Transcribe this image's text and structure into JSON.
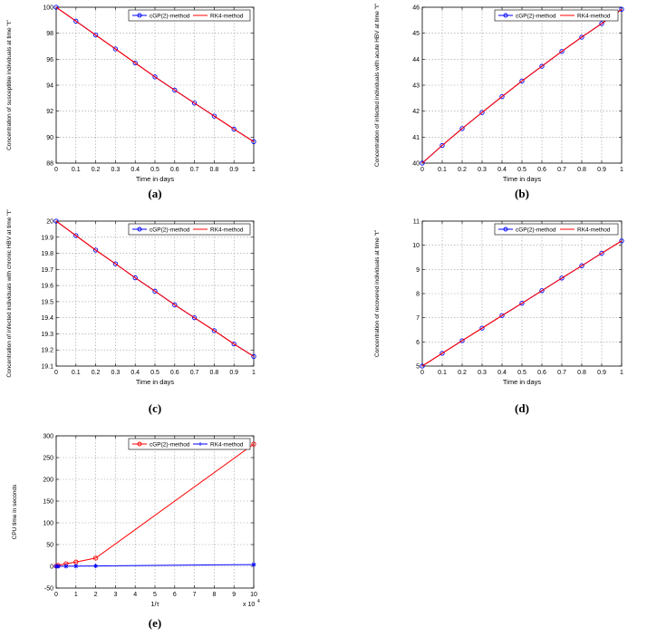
{
  "chart_data": [
    {
      "id": "a",
      "type": "line",
      "panel_label": "(a)",
      "xlabel": "Time in days",
      "ylabel": "Concentration of susceptible individuals at time \"t\"",
      "xlim": [
        0,
        1
      ],
      "ylim": [
        88,
        100
      ],
      "xticks": [
        0,
        0.1,
        0.2,
        0.3,
        0.4,
        0.5,
        0.6,
        0.7,
        0.8,
        0.9,
        1
      ],
      "xtick_labels": [
        "0",
        "0.1",
        "0.2",
        "0.3",
        "0.4",
        "0.5",
        "0.6",
        "0.7",
        "0.8",
        "0.9",
        "1"
      ],
      "yticks": [
        88,
        90,
        92,
        94,
        96,
        98,
        100
      ],
      "ytick_labels": [
        "88",
        "90",
        "92",
        "94",
        "96",
        "98",
        "100"
      ],
      "grid": true,
      "legend_position": "top-right",
      "x": [
        0,
        0.1,
        0.2,
        0.3,
        0.4,
        0.5,
        0.6,
        0.7,
        0.8,
        0.9,
        1
      ],
      "series": [
        {
          "name": "cGP(2)-method",
          "color": "#0000ff",
          "marker": "circle",
          "values": [
            100,
            98.93,
            97.86,
            96.79,
            95.71,
            94.64,
            93.62,
            92.62,
            91.62,
            90.62,
            89.65
          ]
        },
        {
          "name": "RK4-method",
          "color": "#ff0000",
          "marker": "none",
          "values": [
            100,
            98.93,
            97.86,
            96.79,
            95.71,
            94.64,
            93.62,
            92.62,
            91.62,
            90.62,
            89.65
          ]
        }
      ]
    },
    {
      "id": "b",
      "type": "line",
      "panel_label": "(b)",
      "xlabel": "Time in days",
      "ylabel": "Concentration of infected individuals with acute HBV at time \"t\"",
      "xlim": [
        0,
        1
      ],
      "ylim": [
        40,
        46
      ],
      "xticks": [
        0,
        0.1,
        0.2,
        0.3,
        0.4,
        0.5,
        0.6,
        0.7,
        0.8,
        0.9,
        1
      ],
      "xtick_labels": [
        "0",
        "0.1",
        "0.2",
        "0.3",
        "0.4",
        "0.5",
        "0.6",
        "0.7",
        "0.8",
        "0.9",
        "1"
      ],
      "yticks": [
        40,
        41,
        42,
        43,
        44,
        45,
        46
      ],
      "ytick_labels": [
        "40",
        "41",
        "42",
        "43",
        "44",
        "45",
        "46"
      ],
      "grid": true,
      "legend_position": "top-right",
      "x": [
        0,
        0.1,
        0.2,
        0.3,
        0.4,
        0.5,
        0.6,
        0.7,
        0.8,
        0.9,
        1
      ],
      "series": [
        {
          "name": "cGP(2)-method",
          "color": "#0000ff",
          "marker": "circle",
          "values": [
            40,
            40.68,
            41.33,
            41.95,
            42.56,
            43.16,
            43.73,
            44.3,
            44.85,
            45.37,
            45.92
          ]
        },
        {
          "name": "RK4-method",
          "color": "#ff0000",
          "marker": "none",
          "values": [
            40,
            40.68,
            41.33,
            41.95,
            42.56,
            43.16,
            43.73,
            44.3,
            44.85,
            45.37,
            45.92
          ]
        }
      ]
    },
    {
      "id": "c",
      "type": "line",
      "panel_label": "(c)",
      "xlabel": "Time in days",
      "ylabel": "Concentration of infected individuals with chronic HBV at time \"t\"",
      "xlim": [
        0,
        1
      ],
      "ylim": [
        19.1,
        20
      ],
      "xticks": [
        0,
        0.1,
        0.2,
        0.3,
        0.4,
        0.5,
        0.6,
        0.7,
        0.8,
        0.9,
        1
      ],
      "xtick_labels": [
        "0",
        "0.1",
        "0.2",
        "0.3",
        "0.4",
        "0.5",
        "0.6",
        "0.7",
        "0.8",
        "0.9",
        "1"
      ],
      "yticks": [
        19.1,
        19.2,
        19.3,
        19.4,
        19.5,
        19.6,
        19.7,
        19.8,
        19.9,
        20
      ],
      "ytick_labels": [
        "19.1",
        "19.2",
        "19.3",
        "19.4",
        "19.5",
        "19.6",
        "19.7",
        "19.8",
        "19.9",
        "20"
      ],
      "grid": true,
      "legend_position": "top-right",
      "x": [
        0,
        0.1,
        0.2,
        0.3,
        0.4,
        0.5,
        0.6,
        0.7,
        0.8,
        0.9,
        1
      ],
      "series": [
        {
          "name": "cGP(2)-method",
          "color": "#0000ff",
          "marker": "circle",
          "values": [
            20,
            19.91,
            19.82,
            19.735,
            19.648,
            19.565,
            19.48,
            19.4,
            19.32,
            19.237,
            19.16
          ]
        },
        {
          "name": "RK4-method",
          "color": "#ff0000",
          "marker": "none",
          "values": [
            20,
            19.91,
            19.82,
            19.735,
            19.648,
            19.565,
            19.48,
            19.4,
            19.32,
            19.237,
            19.16
          ]
        }
      ]
    },
    {
      "id": "d",
      "type": "line",
      "panel_label": "(d)",
      "xlabel": "Time in days",
      "ylabel": "Concentration of recovered individuals at time \"t\"",
      "xlim": [
        0,
        1
      ],
      "ylim": [
        5,
        11
      ],
      "xticks": [
        0,
        0.1,
        0.2,
        0.3,
        0.4,
        0.5,
        0.6,
        0.7,
        0.8,
        0.9,
        1
      ],
      "xtick_labels": [
        "0",
        "0.1",
        "0.2",
        "0.3",
        "0.4",
        "0.5",
        "0.6",
        "0.7",
        "0.8",
        "0.9",
        "1"
      ],
      "yticks": [
        5,
        6,
        7,
        8,
        9,
        10,
        11
      ],
      "ytick_labels": [
        "5",
        "6",
        "7",
        "8",
        "9",
        "10",
        "11"
      ],
      "grid": true,
      "legend_position": "top-right",
      "x": [
        0,
        0.1,
        0.2,
        0.3,
        0.4,
        0.5,
        0.6,
        0.7,
        0.8,
        0.9,
        1
      ],
      "series": [
        {
          "name": "cGP(2)-method",
          "color": "#0000ff",
          "marker": "circle",
          "values": [
            5,
            5.53,
            6.05,
            6.57,
            7.09,
            7.6,
            8.12,
            8.64,
            9.15,
            9.67,
            10.18
          ]
        },
        {
          "name": "RK4-method",
          "color": "#ff0000",
          "marker": "none",
          "values": [
            5,
            5.53,
            6.05,
            6.57,
            7.09,
            7.6,
            8.12,
            8.64,
            9.15,
            9.67,
            10.18
          ]
        }
      ]
    },
    {
      "id": "e",
      "type": "line",
      "panel_label": "(e)",
      "xlabel": "1/τ",
      "ylabel": "CPU time in seconds",
      "x_multiplier_label": "x 10",
      "x_multiplier_exponent": "4",
      "xlim": [
        0,
        100000
      ],
      "ylim": [
        -50,
        300
      ],
      "xticks": [
        0,
        10000,
        20000,
        30000,
        40000,
        50000,
        60000,
        70000,
        80000,
        90000,
        100000
      ],
      "xtick_labels": [
        "0",
        "1",
        "2",
        "3",
        "4",
        "5",
        "6",
        "7",
        "8",
        "9",
        "10"
      ],
      "yticks": [
        -50,
        0,
        50,
        100,
        150,
        200,
        250,
        300
      ],
      "ytick_labels": [
        "-50",
        "0",
        "50",
        "100",
        "150",
        "200",
        "250",
        "300"
      ],
      "grid": true,
      "legend_position": "top-right",
      "series": [
        {
          "name": "cGP(2)-method",
          "color": "#ff0000",
          "marker": "circle",
          "x": [
            0,
            1000,
            5000,
            10000,
            20000,
            100000
          ],
          "values": [
            0.5,
            2,
            6,
            10,
            19,
            281
          ]
        },
        {
          "name": "RK4-method",
          "color": "#0000ff",
          "marker": "star",
          "x": [
            0,
            1000,
            5000,
            10000,
            20000,
            100000
          ],
          "values": [
            0,
            0,
            0.2,
            0.4,
            0.8,
            4
          ]
        }
      ]
    }
  ]
}
